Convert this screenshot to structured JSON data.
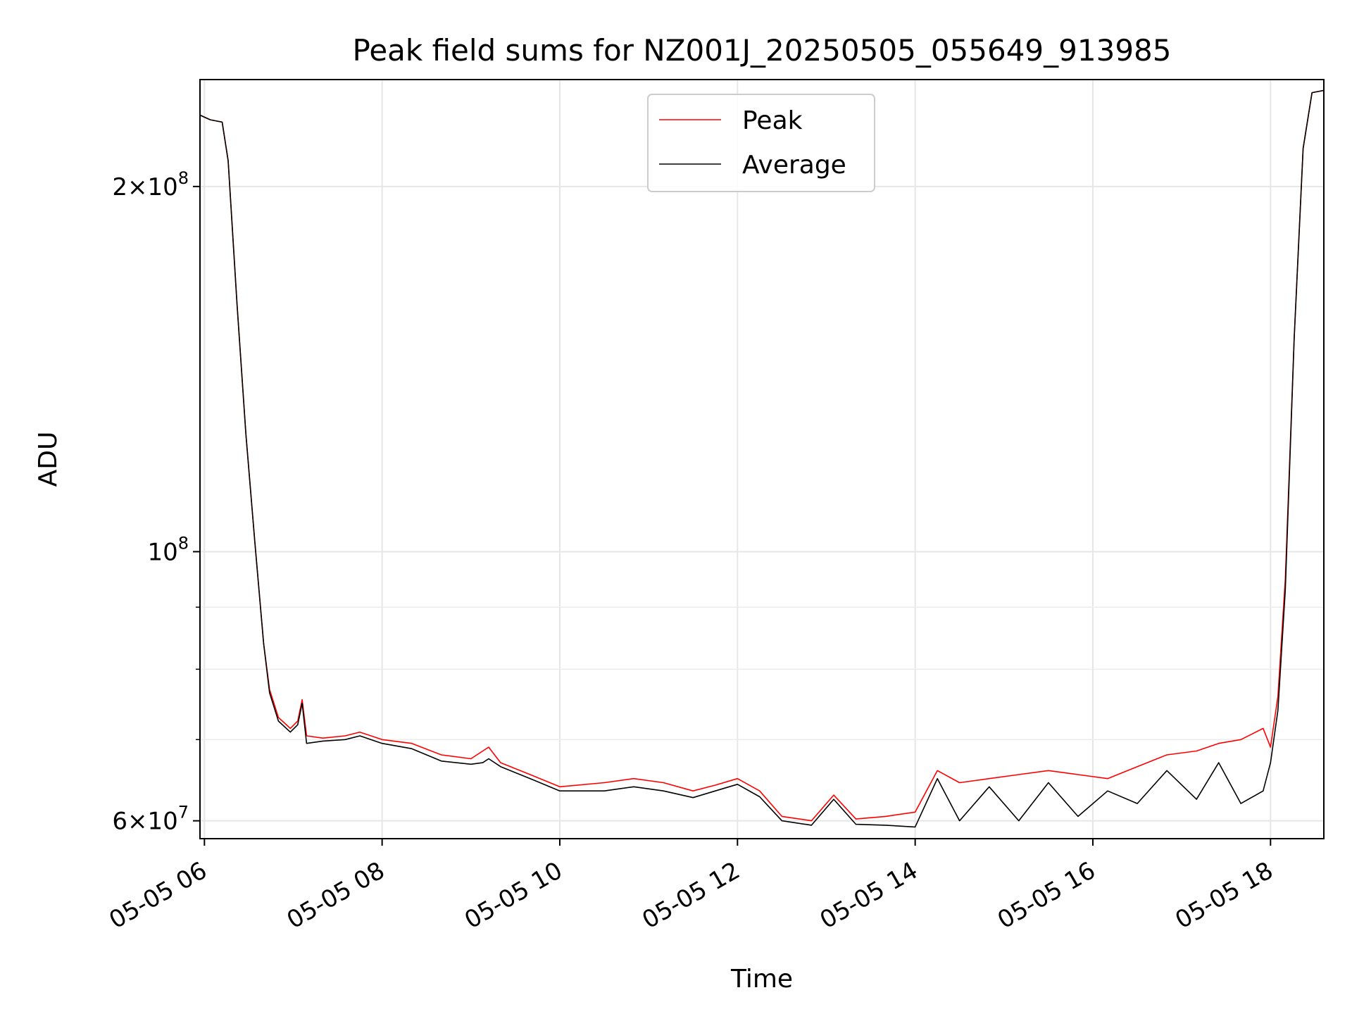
{
  "chart_data": {
    "type": "line",
    "title": "Peak field sums for NZ001J_20250505_055649_913985",
    "xlabel": "Time",
    "ylabel": "ADU",
    "y_scale": "log",
    "ylim": [
      58000000,
      245000000
    ],
    "xlim": [
      "2025-05-05 05:57",
      "2025-05-05 18:36"
    ],
    "x_ticks": [
      {
        "value": "2025-05-05 06:00",
        "label": "05-05 06"
      },
      {
        "value": "2025-05-05 08:00",
        "label": "05-05 08"
      },
      {
        "value": "2025-05-05 10:00",
        "label": "05-05 10"
      },
      {
        "value": "2025-05-05 12:00",
        "label": "05-05 12"
      },
      {
        "value": "2025-05-05 14:00",
        "label": "05-05 14"
      },
      {
        "value": "2025-05-05 16:00",
        "label": "05-05 16"
      },
      {
        "value": "2025-05-05 18:00",
        "label": "05-05 18"
      }
    ],
    "y_ticks": [
      {
        "value": 60000000,
        "base": "6×10",
        "exp": "7"
      },
      {
        "value": 100000000,
        "base": "10",
        "exp": "8"
      },
      {
        "value": 200000000,
        "base": "2×10",
        "exp": "8"
      }
    ],
    "y_minor_ticks": [
      70000000,
      80000000,
      90000000
    ],
    "grid": true,
    "legend_position": "top-center",
    "series": [
      {
        "name": "Peak",
        "color": "#ff0000",
        "points": [
          [
            "2025-05-05 05:57",
            229000000
          ],
          [
            "2025-05-05 06:04",
            227000000
          ],
          [
            "2025-05-05 06:12",
            226000000
          ],
          [
            "2025-05-05 06:16",
            210000000
          ],
          [
            "2025-05-05 06:22",
            160000000
          ],
          [
            "2025-05-05 06:28",
            125000000
          ],
          [
            "2025-05-05 06:34",
            102000000
          ],
          [
            "2025-05-05 06:40",
            84000000
          ],
          [
            "2025-05-05 06:44",
            77000000
          ],
          [
            "2025-05-05 06:50",
            73000000
          ],
          [
            "2025-05-05 06:58",
            71500000
          ],
          [
            "2025-05-05 07:03",
            72500000
          ],
          [
            "2025-05-05 07:06",
            75500000
          ],
          [
            "2025-05-05 07:09",
            70500000
          ],
          [
            "2025-05-05 07:20",
            70200000
          ],
          [
            "2025-05-05 07:35",
            70500000
          ],
          [
            "2025-05-05 07:45",
            71000000
          ],
          [
            "2025-05-05 08:00",
            70000000
          ],
          [
            "2025-05-05 08:20",
            69500000
          ],
          [
            "2025-05-05 08:40",
            68000000
          ],
          [
            "2025-05-05 09:00",
            67500000
          ],
          [
            "2025-05-05 09:08",
            68500000
          ],
          [
            "2025-05-05 09:12",
            69000000
          ],
          [
            "2025-05-05 09:20",
            67000000
          ],
          [
            "2025-05-05 09:40",
            65500000
          ],
          [
            "2025-05-05 10:00",
            64000000
          ],
          [
            "2025-05-05 10:30",
            64500000
          ],
          [
            "2025-05-05 10:50",
            65000000
          ],
          [
            "2025-05-05 11:10",
            64500000
          ],
          [
            "2025-05-05 11:30",
            63500000
          ],
          [
            "2025-05-05 11:45",
            64200000
          ],
          [
            "2025-05-05 12:00",
            65000000
          ],
          [
            "2025-05-05 12:15",
            63500000
          ],
          [
            "2025-05-05 12:30",
            60500000
          ],
          [
            "2025-05-05 12:50",
            60000000
          ],
          [
            "2025-05-05 13:05",
            63000000
          ],
          [
            "2025-05-05 13:20",
            60200000
          ],
          [
            "2025-05-05 13:40",
            60500000
          ],
          [
            "2025-05-05 14:00",
            61000000
          ],
          [
            "2025-05-05 14:15",
            66000000
          ],
          [
            "2025-05-05 14:30",
            64500000
          ],
          [
            "2025-05-05 14:50",
            65000000
          ],
          [
            "2025-05-05 15:10",
            65500000
          ],
          [
            "2025-05-05 15:30",
            66000000
          ],
          [
            "2025-05-05 15:50",
            65500000
          ],
          [
            "2025-05-05 16:10",
            65000000
          ],
          [
            "2025-05-05 16:30",
            66500000
          ],
          [
            "2025-05-05 16:50",
            68000000
          ],
          [
            "2025-05-05 17:10",
            68500000
          ],
          [
            "2025-05-05 17:25",
            69500000
          ],
          [
            "2025-05-05 17:40",
            70000000
          ],
          [
            "2025-05-05 17:55",
            71500000
          ],
          [
            "2025-05-05 18:00",
            69000000
          ],
          [
            "2025-05-05 18:05",
            76000000
          ],
          [
            "2025-05-05 18:10",
            95000000
          ],
          [
            "2025-05-05 18:16",
            150000000
          ],
          [
            "2025-05-05 18:22",
            215000000
          ],
          [
            "2025-05-05 18:28",
            239000000
          ],
          [
            "2025-05-05 18:36",
            240000000
          ]
        ]
      },
      {
        "name": "Average",
        "color": "#000000",
        "points": [
          [
            "2025-05-05 05:57",
            229000000
          ],
          [
            "2025-05-05 06:04",
            227000000
          ],
          [
            "2025-05-05 06:12",
            226000000
          ],
          [
            "2025-05-05 06:16",
            210000000
          ],
          [
            "2025-05-05 06:22",
            160000000
          ],
          [
            "2025-05-05 06:28",
            125000000
          ],
          [
            "2025-05-05 06:34",
            102000000
          ],
          [
            "2025-05-05 06:40",
            84000000
          ],
          [
            "2025-05-05 06:44",
            76500000
          ],
          [
            "2025-05-05 06:50",
            72500000
          ],
          [
            "2025-05-05 06:58",
            71000000
          ],
          [
            "2025-05-05 07:03",
            72000000
          ],
          [
            "2025-05-05 07:06",
            75000000
          ],
          [
            "2025-05-05 07:09",
            69500000
          ],
          [
            "2025-05-05 07:20",
            69800000
          ],
          [
            "2025-05-05 07:35",
            70000000
          ],
          [
            "2025-05-05 07:45",
            70500000
          ],
          [
            "2025-05-05 08:00",
            69500000
          ],
          [
            "2025-05-05 08:20",
            68800000
          ],
          [
            "2025-05-05 08:40",
            67200000
          ],
          [
            "2025-05-05 09:00",
            66800000
          ],
          [
            "2025-05-05 09:08",
            67000000
          ],
          [
            "2025-05-05 09:12",
            67500000
          ],
          [
            "2025-05-05 09:20",
            66500000
          ],
          [
            "2025-05-05 09:40",
            65000000
          ],
          [
            "2025-05-05 10:00",
            63500000
          ],
          [
            "2025-05-05 10:30",
            63500000
          ],
          [
            "2025-05-05 10:50",
            64000000
          ],
          [
            "2025-05-05 11:10",
            63500000
          ],
          [
            "2025-05-05 11:30",
            62700000
          ],
          [
            "2025-05-05 11:45",
            63500000
          ],
          [
            "2025-05-05 12:00",
            64300000
          ],
          [
            "2025-05-05 12:15",
            62800000
          ],
          [
            "2025-05-05 12:30",
            60000000
          ],
          [
            "2025-05-05 12:50",
            59500000
          ],
          [
            "2025-05-05 13:05",
            62500000
          ],
          [
            "2025-05-05 13:20",
            59600000
          ],
          [
            "2025-05-05 13:40",
            59500000
          ],
          [
            "2025-05-05 14:00",
            59300000
          ],
          [
            "2025-05-05 14:15",
            65000000
          ],
          [
            "2025-05-05 14:30",
            60000000
          ],
          [
            "2025-05-05 14:50",
            64000000
          ],
          [
            "2025-05-05 15:10",
            60000000
          ],
          [
            "2025-05-05 15:30",
            64500000
          ],
          [
            "2025-05-05 15:50",
            60500000
          ],
          [
            "2025-05-05 16:10",
            63500000
          ],
          [
            "2025-05-05 16:30",
            62000000
          ],
          [
            "2025-05-05 16:50",
            66000000
          ],
          [
            "2025-05-05 17:10",
            62500000
          ],
          [
            "2025-05-05 17:25",
            67000000
          ],
          [
            "2025-05-05 17:40",
            62000000
          ],
          [
            "2025-05-05 17:55",
            63500000
          ],
          [
            "2025-05-05 18:00",
            67000000
          ],
          [
            "2025-05-05 18:05",
            74000000
          ],
          [
            "2025-05-05 18:10",
            93000000
          ],
          [
            "2025-05-05 18:16",
            150000000
          ],
          [
            "2025-05-05 18:22",
            215000000
          ],
          [
            "2025-05-05 18:28",
            239000000
          ],
          [
            "2025-05-05 18:36",
            240000000
          ]
        ]
      }
    ]
  }
}
